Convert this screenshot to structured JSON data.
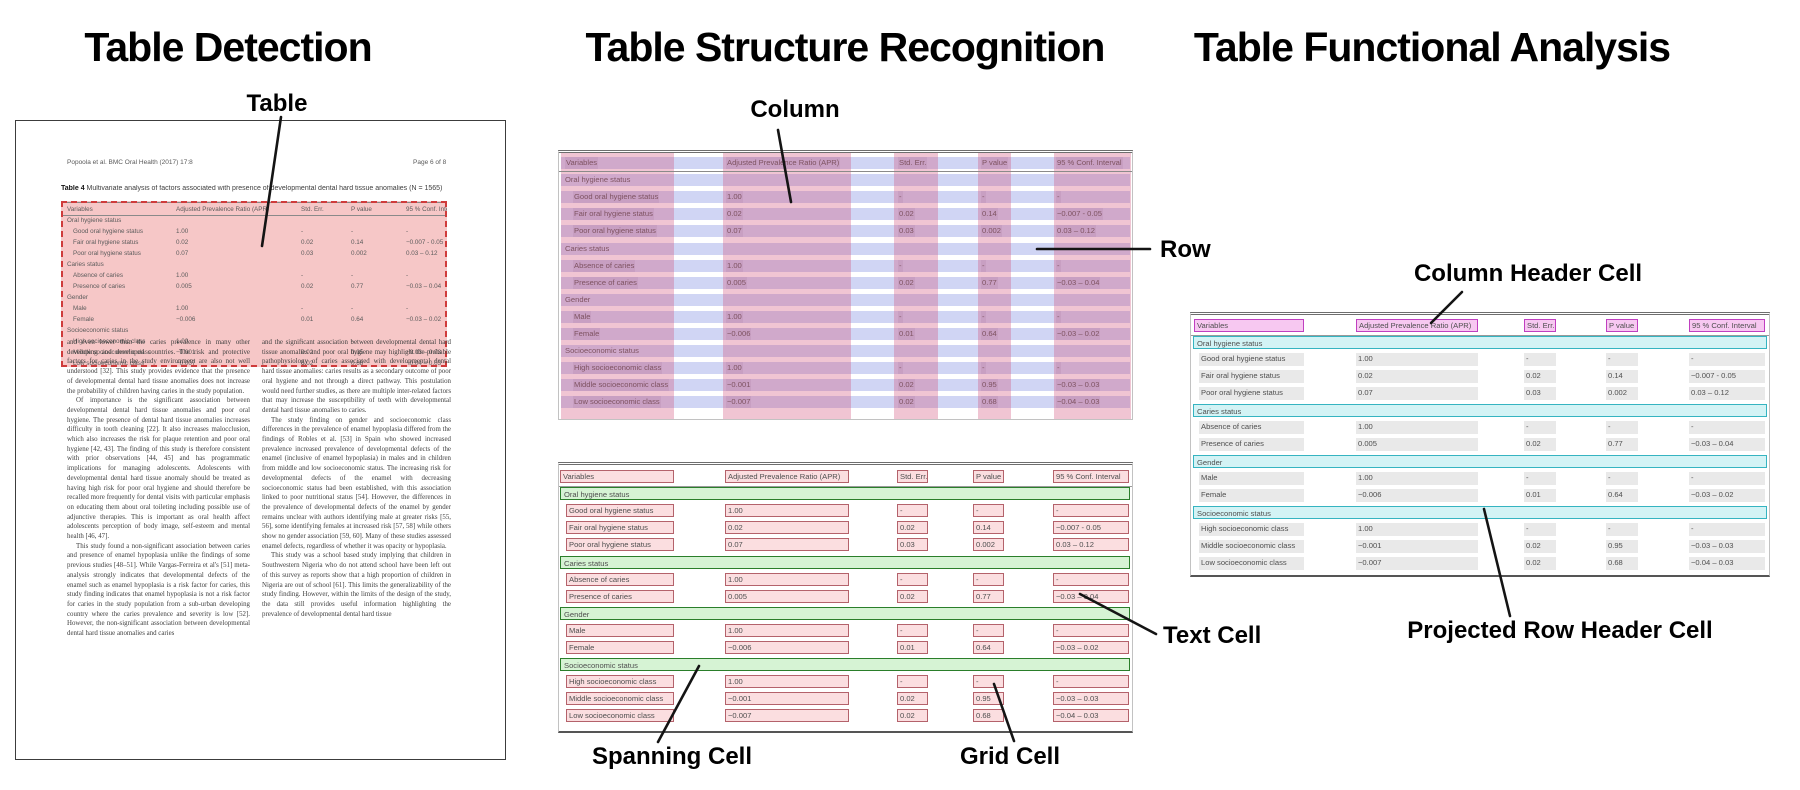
{
  "figure": {
    "panel_titles": {
      "detection": "Table Detection",
      "structure": "Table Structure Recognition",
      "functional": "Table Functional Analysis"
    },
    "labels": {
      "table": "Table",
      "column": "Column",
      "row": "Row",
      "spanning_cell": "Spanning Cell",
      "grid_cell": "Grid Cell",
      "text_cell": "Text Cell",
      "column_header_cell": "Column Header Cell",
      "projected_row_header_cell": "Projected Row Header Cell"
    }
  },
  "document": {
    "header_left": "Popoola et al. BMC Oral Health  (2017) 17:8",
    "header_right": "Page 6 of 8",
    "caption_label": "Table 4",
    "caption_text": " Multivariate analysis of factors associated with presence of developmental dental hard tissue anomalies (N = 1565)",
    "body_left": [
      "and even lower than the caries prevalence in many other developing and developed countries. The risk and protective factors for caries in the study environment are also not well understood [32]. This study provides evidence that the presence of developmental dental hard tissue anomalies does not increase the probability of children having caries in the study population.",
      "Of importance is the significant association between developmental dental hard tissue anomalies and poor oral hygiene. The presence of dental hard tissue anomalies increases difficulty in tooth cleaning [22]. It also increases malocclusion, which also increases the risk for plaque retention and poor oral hygiene [42, 43]. The finding of this study is therefore consistent with prior observations [44, 45] and has programmatic implications for managing adolescents. Adolescents with developmental dental hard tissue anomaly should be treated as having high risk for poor oral hygiene and should therefore be recalled more frequently for dental visits with particular emphasis on educating them about oral toileting including possible use of adjunctive therapies. This is important as oral health affect adolescents perception of body image, self-esteem and mental health [46, 47].",
      "This study found a non-significant association between caries and presence of enamel hypoplasia unlike the findings of some previous studies [48–51]. While Vargas-Ferreira et al's [51] meta-analysis strongly indicates that developmental defects of the enamel such as enamel hypoplasia is a risk factor for caries, this study finding indicates that enamel hypoplasia is not a risk factor for caries in the study population from a sub-urban developing country where the caries prevalence and severity is low [52]. However, the non-significant association between developmental dental hard tissue anomalies and caries"
    ],
    "body_right": [
      "and the significant association between developmental dental hard tissue anomalies and poor oral hygiene may highlight the probable pathophysiology of caries associated with developmental dental hard tissue anomalies: caries results as a secondary outcome of poor oral hygiene and not through a direct pathway. This postulation would need further studies, as there are multiple inter-related factors that may increase the susceptibility of teeth with developmental dental hard tissue anomalies to caries.",
      "The study finding on gender and socioeconomic class differences in the prevalence of enamel hypoplasia differed from the findings of Robles et al. [53] in Spain who showed increased prevalence increased prevalence of developmental defects of the enamel (inclusive of enamel hypoplasia) in males and in children from middle and low socioeconomic status. The increasing risk for developmental defects of the enamel with decreasing socioeconomic status had been established, with this association linked to poor nutritional status [54]. However, the differences in the prevalence of developmental defects of the enamel by gender remains unclear with authors identifying male at greater risks [55, 56], some identifying females at increased risk [57, 58] while others show no gender association [59, 60]. Many of these studies assessed enamel defects, regardless of whether it was opacity or hypoplasia.",
      "This study was a school based study implying that children in Southwestern Nigeria who do not attend school have been left out of this survey as reports show that a high proportion of children in Nigeria are out of school [61]. This limits the generalizability of the study finding. However, within the limits of the design of the study, the data still provides useful information highlighting the prevalence of developmental dental hard tissue"
    ]
  },
  "table": {
    "type": "table",
    "columns": [
      "Variables",
      "Adjusted Prevalence Ratio (APR)",
      "Std. Err.",
      "P value",
      "95 % Conf. Interval"
    ],
    "rows": [
      {
        "t": "s",
        "label": "Oral hygiene status"
      },
      {
        "t": "d",
        "cells": [
          "Good oral hygiene status",
          "1.00",
          "-",
          "-",
          "-"
        ]
      },
      {
        "t": "d",
        "cells": [
          "Fair oral hygiene status",
          "0.02",
          "0.02",
          "0.14",
          "−0.007 - 0.05"
        ]
      },
      {
        "t": "d",
        "cells": [
          "Poor oral hygiene status",
          "0.07",
          "0.03",
          "0.002",
          "0.03 – 0.12"
        ]
      },
      {
        "t": "s",
        "label": "Caries status"
      },
      {
        "t": "d",
        "cells": [
          "Absence of caries",
          "1.00",
          "-",
          "-",
          "-"
        ]
      },
      {
        "t": "d",
        "cells": [
          "Presence of caries",
          "0.005",
          "0.02",
          "0.77",
          "−0.03 – 0.04"
        ]
      },
      {
        "t": "s",
        "label": "Gender"
      },
      {
        "t": "d",
        "cells": [
          "Male",
          "1.00",
          "-",
          "-",
          "-"
        ]
      },
      {
        "t": "d",
        "cells": [
          "Female",
          "−0.006",
          "0.01",
          "0.64",
          "−0.03 – 0.02"
        ]
      },
      {
        "t": "s",
        "label": "Socioeconomic status"
      },
      {
        "t": "d",
        "cells": [
          "High socioeconomic class",
          "1.00",
          "-",
          "-",
          "-"
        ]
      },
      {
        "t": "d",
        "cells": [
          "Middle socioeconomic class",
          "−0.001",
          "0.02",
          "0.95",
          "−0.03 – 0.03"
        ]
      },
      {
        "t": "d",
        "cells": [
          "Low socioeconomic class",
          "−0.007",
          "0.02",
          "0.68",
          "−0.04 – 0.03"
        ]
      }
    ]
  },
  "colors": {
    "detection_fill": "rgba(235,130,130,0.45)",
    "detection_border": "#cf3b3b",
    "column_band": "rgba(210,80,120,0.33)",
    "row_band": "rgba(100,115,220,0.30)",
    "text_cell_fill": "#fbdee0",
    "text_cell_border": "#b4626b",
    "spanning_fill": "#d6f3d4",
    "spanning_border": "#2a7e2a",
    "column_header_fill": "#f7c8f1",
    "column_header_border": "#c03fc0",
    "projected_fill": "#d3f3f5",
    "projected_border": "#35b4c1",
    "text_highlight": "#e9e9e9"
  }
}
